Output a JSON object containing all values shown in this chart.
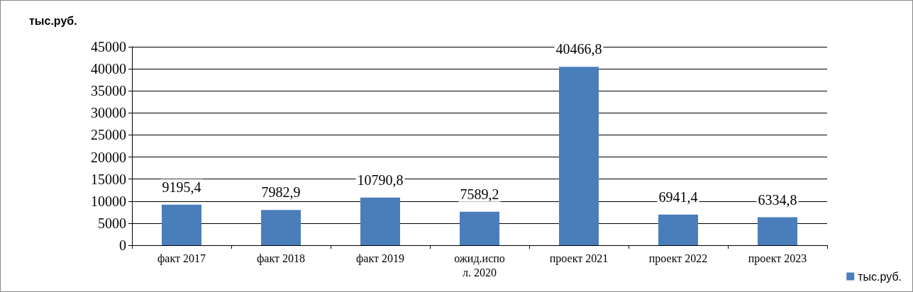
{
  "chart_data": {
    "type": "bar",
    "ylabel": "тыс.руб.",
    "categories": [
      "факт 2017",
      "факт 2018",
      "факт 2019",
      "ожид.испол. 2020",
      "проект 2021",
      "проект 2022",
      "проект 2023"
    ],
    "series": [
      {
        "name": "тыс.руб.",
        "color": "#4a7ebb",
        "values": [
          9195.4,
          7982.9,
          10790.8,
          7589.2,
          40466.8,
          6941.4,
          6334.8
        ],
        "value_labels": [
          "9195,4",
          "7982,9",
          "10790,8",
          "7589,2",
          "40466,8",
          "6941,4",
          "6334,8"
        ]
      }
    ],
    "ylim": [
      0,
      45000
    ],
    "yticks": [
      0,
      5000,
      10000,
      15000,
      20000,
      25000,
      30000,
      35000,
      40000,
      45000
    ],
    "grid": "y",
    "legend": "bottom right"
  }
}
